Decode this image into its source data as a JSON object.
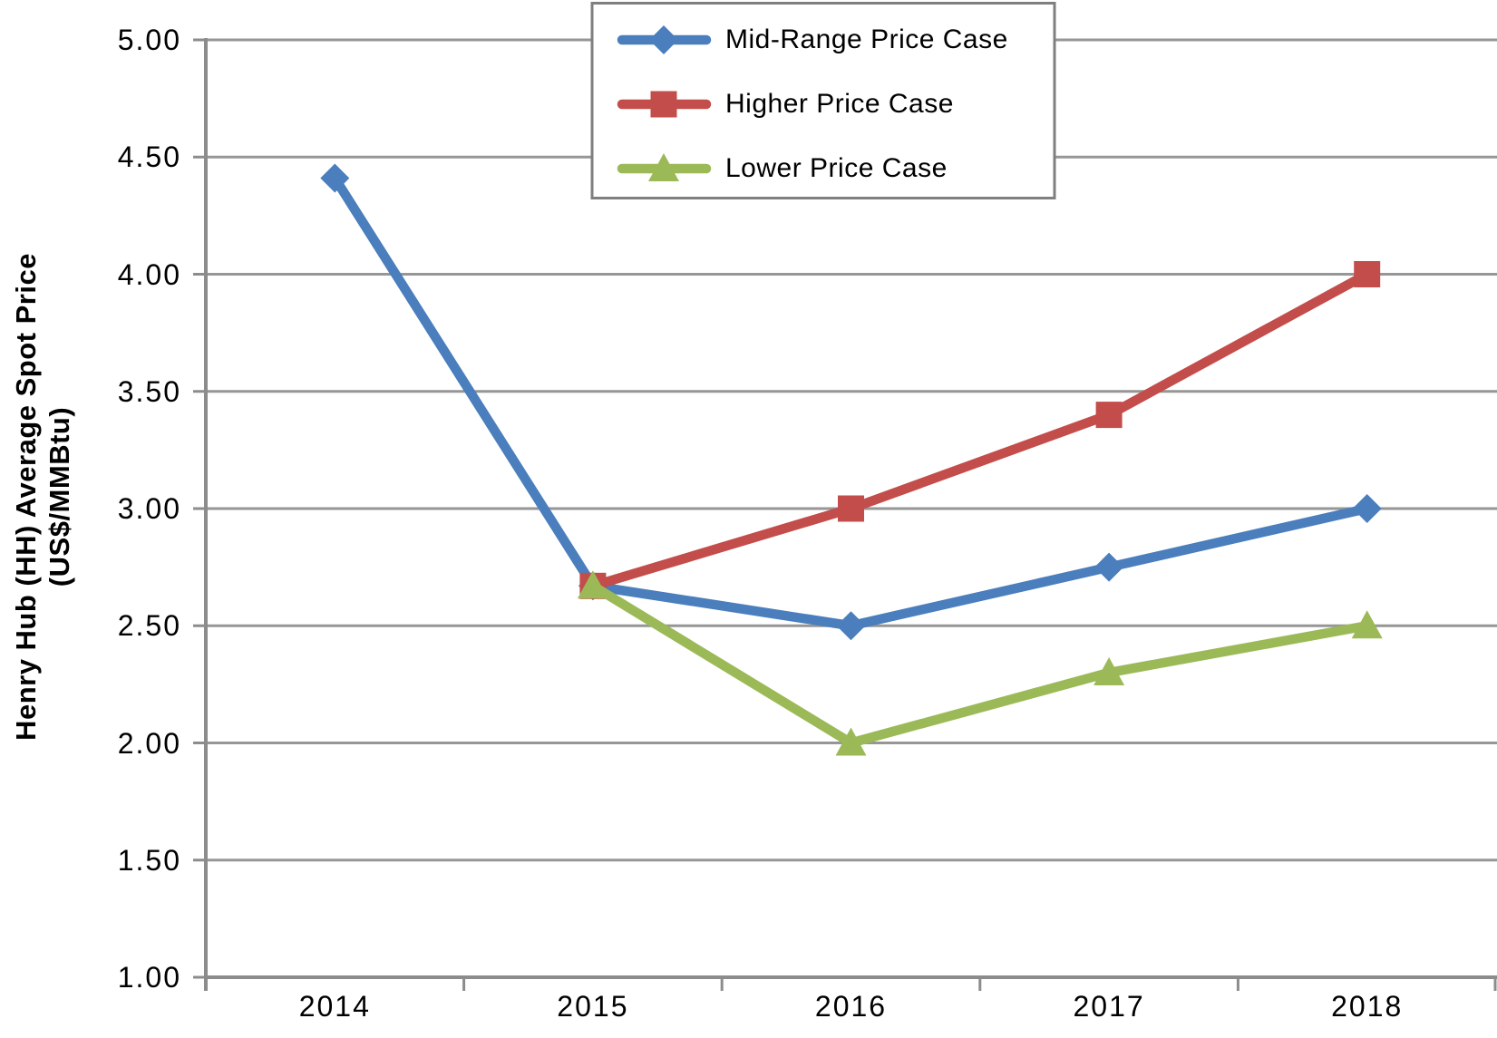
{
  "chart_data": {
    "type": "line",
    "title": "",
    "ylabel_line1": "Henry Hub (HH) Average Spot Price",
    "ylabel_line2": "(US$/MMBtu)",
    "xlabel": "",
    "categories": [
      "2014",
      "2015",
      "2016",
      "2017",
      "2018"
    ],
    "y_ticks": [
      "5.00",
      "4.50",
      "4.00",
      "3.50",
      "3.00",
      "2.50",
      "2.00",
      "1.50",
      "1.00"
    ],
    "ylim": [
      1.0,
      5.0
    ],
    "y_tick_step": 0.5,
    "grid": "horizontal-major",
    "legend_position": "top-center-framed",
    "series": [
      {
        "name": "Mid-Range Price Case",
        "marker": "diamond",
        "color": "#4A7EBC",
        "points": [
          {
            "x": "2014",
            "y": 4.41
          },
          {
            "x": "2015",
            "y": 2.67
          },
          {
            "x": "2016",
            "y": 2.5
          },
          {
            "x": "2017",
            "y": 2.75
          },
          {
            "x": "2018",
            "y": 3.0
          }
        ]
      },
      {
        "name": "Higher Price Case",
        "marker": "square",
        "color": "#C34D4A",
        "points": [
          {
            "x": "2015",
            "y": 2.67
          },
          {
            "x": "2016",
            "y": 3.0
          },
          {
            "x": "2017",
            "y": 3.4
          },
          {
            "x": "2018",
            "y": 4.0
          }
        ]
      },
      {
        "name": "Lower Price Case",
        "marker": "triangle",
        "color": "#9BBA57",
        "points": [
          {
            "x": "2015",
            "y": 2.67
          },
          {
            "x": "2016",
            "y": 2.0
          },
          {
            "x": "2017",
            "y": 2.3
          },
          {
            "x": "2018",
            "y": 2.5
          }
        ]
      }
    ],
    "colors": {
      "grid": "#969696",
      "axis": "#8C8C8C",
      "legend_border": "#7F7F7F",
      "text": "#000000",
      "background": "#FFFFFF"
    }
  }
}
